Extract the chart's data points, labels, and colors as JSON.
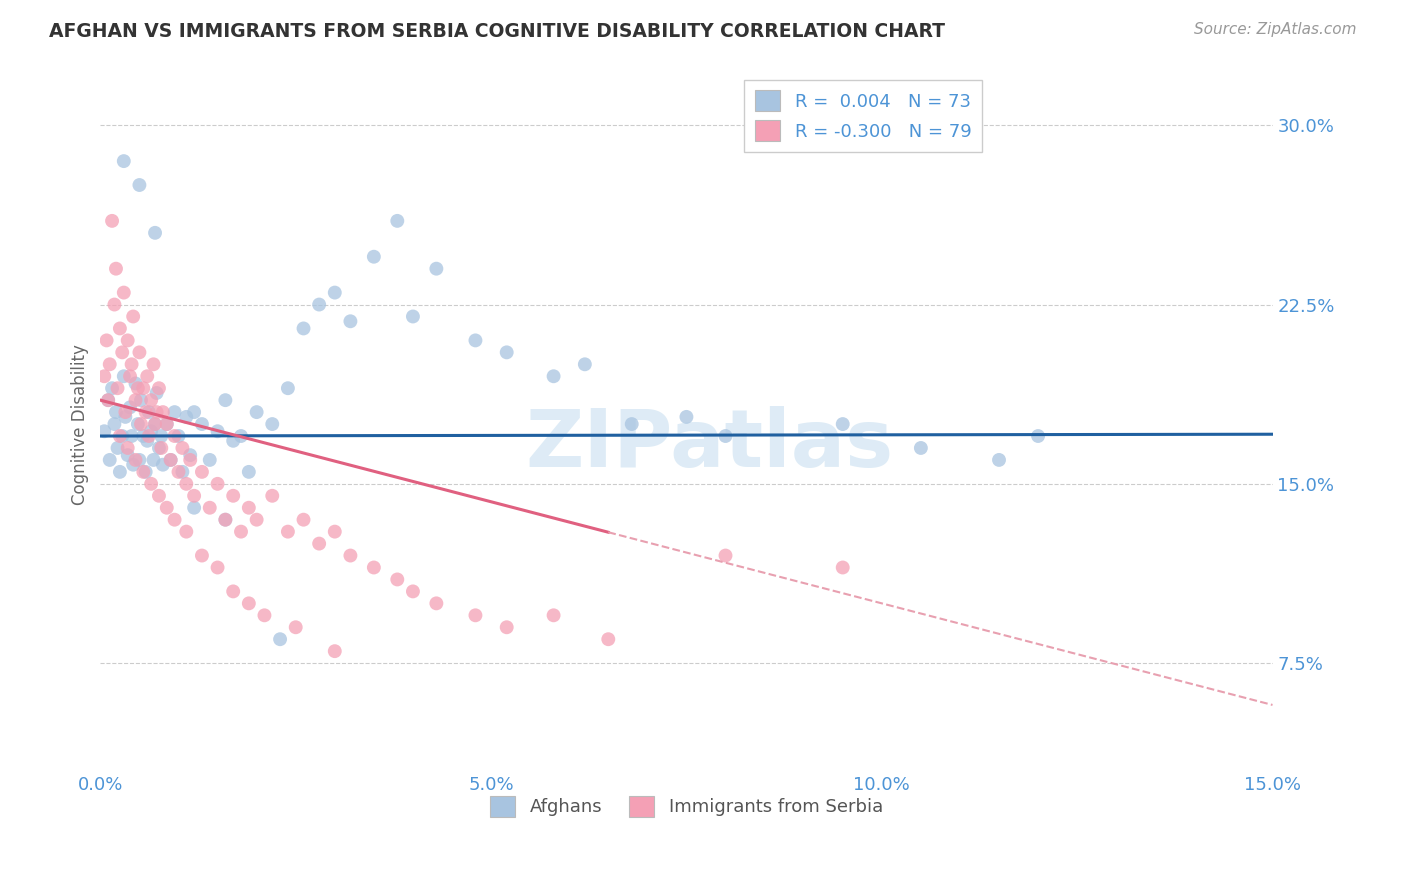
{
  "title": "AFGHAN VS IMMIGRANTS FROM SERBIA COGNITIVE DISABILITY CORRELATION CHART",
  "source": "Source: ZipAtlas.com",
  "ylabel": "Cognitive Disability",
  "xlabel_ticks": [
    "0.0%",
    "5.0%",
    "10.0%",
    "15.0%"
  ],
  "xlabel_vals": [
    0.0,
    5.0,
    10.0,
    15.0
  ],
  "ylabel_ticks": [
    "7.5%",
    "15.0%",
    "22.5%",
    "30.0%"
  ],
  "ylabel_vals": [
    7.5,
    15.0,
    22.5,
    30.0
  ],
  "xmin": 0.0,
  "xmax": 15.0,
  "ymin": 3.0,
  "ymax": 32.0,
  "legend_r_afghan": "0.004",
  "legend_n_afghan": "73",
  "legend_r_serbia": "-0.300",
  "legend_n_serbia": "79",
  "color_afghan": "#a8c4e0",
  "color_serbia": "#f4a0b5",
  "color_afghan_line": "#2060a0",
  "color_serbia_line": "#e06080",
  "color_serbia_line_dashed": "#e8a0b0",
  "color_axis_labels": "#4d94d6",
  "color_title": "#333333",
  "color_source": "#999999",
  "color_grid": "#cccccc",
  "color_watermark": "#c8dff0",
  "watermark": "ZIPatlas",
  "afghan_line_y_intercept": 17.0,
  "afghan_line_slope": 0.005,
  "serbia_line_y_intercept": 18.5,
  "serbia_line_slope": -0.85,
  "serbia_solid_xmax": 6.5,
  "afghan_x": [
    0.05,
    0.1,
    0.12,
    0.15,
    0.18,
    0.2,
    0.22,
    0.25,
    0.28,
    0.3,
    0.32,
    0.35,
    0.38,
    0.4,
    0.42,
    0.45,
    0.48,
    0.5,
    0.52,
    0.55,
    0.58,
    0.6,
    0.62,
    0.65,
    0.68,
    0.7,
    0.72,
    0.75,
    0.78,
    0.8,
    0.85,
    0.9,
    0.95,
    1.0,
    1.05,
    1.1,
    1.15,
    1.2,
    1.3,
    1.4,
    1.5,
    1.6,
    1.7,
    1.8,
    1.9,
    2.0,
    2.2,
    2.4,
    2.6,
    2.8,
    3.0,
    3.2,
    3.5,
    3.8,
    4.0,
    4.3,
    4.8,
    5.2,
    5.8,
    6.2,
    6.8,
    7.5,
    8.0,
    9.5,
    10.5,
    11.5,
    12.0,
    0.3,
    0.5,
    0.7,
    1.2,
    1.6,
    2.3
  ],
  "afghan_y": [
    17.2,
    18.5,
    16.0,
    19.0,
    17.5,
    18.0,
    16.5,
    15.5,
    17.0,
    19.5,
    17.8,
    16.2,
    18.2,
    17.0,
    15.8,
    19.2,
    17.5,
    16.0,
    18.5,
    17.0,
    15.5,
    16.8,
    18.0,
    17.2,
    16.0,
    17.5,
    18.8,
    16.5,
    17.0,
    15.8,
    17.5,
    16.0,
    18.0,
    17.0,
    15.5,
    17.8,
    16.2,
    18.0,
    17.5,
    16.0,
    17.2,
    18.5,
    16.8,
    17.0,
    15.5,
    18.0,
    17.5,
    19.0,
    21.5,
    22.5,
    23.0,
    21.8,
    24.5,
    26.0,
    22.0,
    24.0,
    21.0,
    20.5,
    19.5,
    20.0,
    17.5,
    17.8,
    17.0,
    17.5,
    16.5,
    16.0,
    17.0,
    28.5,
    27.5,
    25.5,
    14.0,
    13.5,
    8.5
  ],
  "serbia_x": [
    0.05,
    0.08,
    0.1,
    0.12,
    0.15,
    0.18,
    0.2,
    0.22,
    0.25,
    0.28,
    0.3,
    0.32,
    0.35,
    0.38,
    0.4,
    0.42,
    0.45,
    0.48,
    0.5,
    0.52,
    0.55,
    0.58,
    0.6,
    0.62,
    0.65,
    0.68,
    0.7,
    0.72,
    0.75,
    0.78,
    0.8,
    0.85,
    0.9,
    0.95,
    1.0,
    1.05,
    1.1,
    1.15,
    1.2,
    1.3,
    1.4,
    1.5,
    1.6,
    1.7,
    1.8,
    1.9,
    2.0,
    2.2,
    2.4,
    2.6,
    2.8,
    3.0,
    3.2,
    3.5,
    3.8,
    4.0,
    4.3,
    4.8,
    5.2,
    5.8,
    6.5,
    8.0,
    0.25,
    0.35,
    0.45,
    0.55,
    0.65,
    0.75,
    0.85,
    0.95,
    1.1,
    1.3,
    1.5,
    1.7,
    1.9,
    2.1,
    2.5,
    3.0,
    9.5
  ],
  "serbia_y": [
    19.5,
    21.0,
    18.5,
    20.0,
    26.0,
    22.5,
    24.0,
    19.0,
    21.5,
    20.5,
    23.0,
    18.0,
    21.0,
    19.5,
    20.0,
    22.0,
    18.5,
    19.0,
    20.5,
    17.5,
    19.0,
    18.0,
    19.5,
    17.0,
    18.5,
    20.0,
    17.5,
    18.0,
    19.0,
    16.5,
    18.0,
    17.5,
    16.0,
    17.0,
    15.5,
    16.5,
    15.0,
    16.0,
    14.5,
    15.5,
    14.0,
    15.0,
    13.5,
    14.5,
    13.0,
    14.0,
    13.5,
    14.5,
    13.0,
    13.5,
    12.5,
    13.0,
    12.0,
    11.5,
    11.0,
    10.5,
    10.0,
    9.5,
    9.0,
    9.5,
    8.5,
    12.0,
    17.0,
    16.5,
    16.0,
    15.5,
    15.0,
    14.5,
    14.0,
    13.5,
    13.0,
    12.0,
    11.5,
    10.5,
    10.0,
    9.5,
    9.0,
    8.0,
    11.5
  ]
}
